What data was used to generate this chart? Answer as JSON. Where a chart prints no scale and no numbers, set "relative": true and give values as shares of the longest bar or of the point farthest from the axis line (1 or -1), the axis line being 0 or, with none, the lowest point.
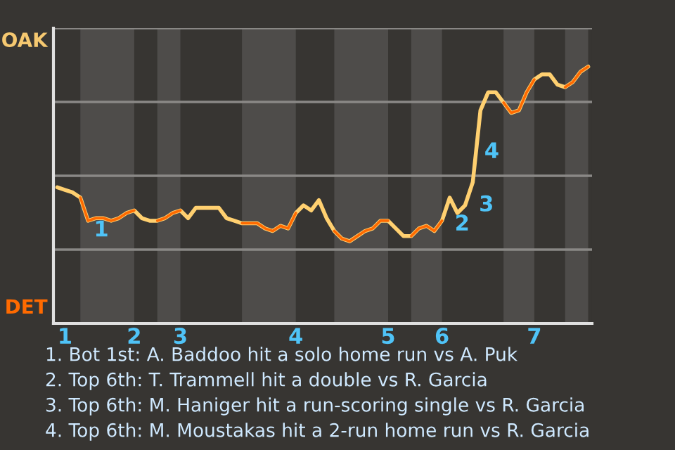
{
  "chart_data": {
    "type": "line",
    "relative": true,
    "tick_labels": "x",
    "legend": false,
    "marker": "none",
    "line_style": "solid",
    "categories": [
      null,
      "1",
      null,
      null,
      null,
      null,
      null,
      null,
      null,
      null,
      "2",
      null,
      null,
      null,
      null,
      null,
      "3",
      null,
      null,
      null,
      null,
      null,
      null,
      null,
      null,
      null,
      null,
      null,
      null,
      null,
      null,
      "4",
      null,
      null,
      null,
      null,
      null,
      null,
      null,
      null,
      null,
      null,
      null,
      "5",
      null,
      null,
      null,
      null,
      null,
      null,
      "6",
      null,
      null,
      null,
      null,
      null,
      null,
      null,
      null,
      null,
      null,
      null,
      "7",
      null,
      null,
      null,
      null,
      null,
      null,
      null
    ],
    "series": [
      {
        "color": "#ffd070",
        "values": [
          0.53,
          0.52,
          0.51,
          0.49,
          0.4,
          0.41,
          0.41,
          0.4,
          0.41,
          0.43,
          0.44,
          0.41,
          0.4,
          0.4,
          0.41,
          0.43,
          0.44,
          0.41,
          0.45,
          0.45,
          0.45,
          0.45,
          0.41,
          0.4,
          0.39,
          0.39,
          0.39,
          0.37,
          0.36,
          0.38,
          0.37,
          0.43,
          0.46,
          0.44,
          0.48,
          0.41,
          0.36,
          0.33,
          0.32,
          0.34,
          0.36,
          0.37,
          0.4,
          0.4,
          0.37,
          0.34,
          0.34,
          0.37,
          0.38,
          0.36,
          0.4,
          0.49,
          0.43,
          0.46,
          0.55,
          0.83,
          0.9,
          0.9,
          0.86,
          0.82,
          0.83,
          0.9,
          0.95,
          0.97,
          0.97,
          0.93,
          0.92,
          0.94,
          0.98,
          1
        ]
      },
      {
        "color": "#ff6a00",
        "values": [
          null,
          null,
          null,
          0.49,
          0.4,
          0.41,
          0.41,
          0.4,
          0.41,
          0.43,
          0.44,
          null,
          null,
          0.4,
          0.41,
          0.43,
          0.44,
          null,
          null,
          null,
          null,
          null,
          null,
          null,
          0.39,
          0.39,
          0.39,
          0.37,
          0.36,
          0.38,
          0.37,
          0.43,
          null,
          null,
          null,
          null,
          0.36,
          0.33,
          0.32,
          0.34,
          0.36,
          0.37,
          0.4,
          0.4,
          null,
          null,
          0.34,
          0.37,
          0.38,
          0.36,
          0.4,
          null,
          null,
          null,
          null,
          null,
          null,
          null,
          0.86,
          0.82,
          0.83,
          0.9,
          0.95,
          null,
          null,
          null,
          0.92,
          0.94,
          0.98,
          1
        ]
      }
    ],
    "annotations": [
      "OAK",
      "DET",
      "1",
      "2",
      "3",
      "4",
      "1. Bot 1st: A. Baddoo hit a solo home run vs A. Puk",
      "2. Top 6th: T. Trammell hit a double vs R. Garcia",
      "3. Top 6th: M. Haniger hit a run-scoring single vs R. Garcia",
      "4. Top 6th: M. Moustakas hit a 2-run home run vs R. Garcia"
    ]
  }
}
